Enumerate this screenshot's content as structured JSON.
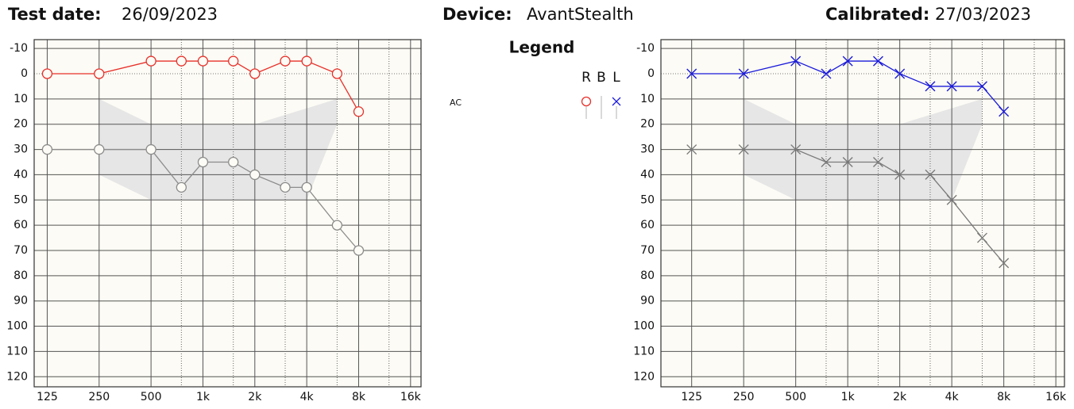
{
  "header": {
    "test_date_label": "Test date:",
    "test_date": "26/09/2023",
    "device_label": "Device:",
    "device": "AvantStealth",
    "calibrated_label": "Calibrated:",
    "calibrated": "27/03/2023"
  },
  "legend": {
    "title": "Legend",
    "columns": [
      "R",
      "B",
      "L"
    ],
    "rows": [
      "AC"
    ]
  },
  "chart_data": [
    {
      "type": "line",
      "log_x": true,
      "zero_line": "dotted",
      "x": [
        125,
        250,
        500,
        750,
        1000,
        1500,
        2000,
        3000,
        4000,
        6000,
        8000
      ],
      "xlim": [
        105,
        18400
      ],
      "xticks": [
        125,
        250,
        500,
        {
          "value": 1000,
          "label": "1k"
        },
        {
          "value": 2000,
          "label": "2k"
        },
        {
          "value": 4000,
          "label": "4k"
        },
        {
          "value": 8000,
          "label": "8k"
        },
        {
          "value": 16000,
          "label": "16k"
        }
      ],
      "minor_xticks": [
        750,
        1500,
        3000,
        6000,
        12000
      ],
      "ylim": [
        -13.5,
        124
      ],
      "yticks": [
        -10,
        0,
        10,
        20,
        30,
        40,
        50,
        60,
        70,
        80,
        90,
        100,
        110,
        120
      ],
      "shaded_region": {
        "x": [
          250,
          500,
          2000,
          6000,
          6000,
          4000,
          2000,
          500,
          250
        ],
        "y": [
          10,
          20,
          20,
          10,
          20,
          50,
          50,
          50,
          40
        ]
      },
      "series": [
        {
          "color": "#e8302a",
          "marker": "circle",
          "values": [
            0,
            0,
            -5,
            -5,
            -5,
            -5,
            0,
            -5,
            -5,
            0,
            15
          ]
        },
        {
          "color": "#8c8c8c",
          "marker": "circle",
          "values": [
            30,
            30,
            30,
            45,
            35,
            35,
            40,
            45,
            45,
            60,
            70
          ]
        }
      ]
    },
    {
      "type": "line",
      "log_x": true,
      "zero_line": "dotted",
      "x": [
        125,
        250,
        500,
        750,
        1000,
        1500,
        2000,
        3000,
        4000,
        6000,
        8000
      ],
      "xlim": [
        83,
        17950
      ],
      "xticks": [
        125,
        250,
        500,
        {
          "value": 1000,
          "label": "1k"
        },
        {
          "value": 2000,
          "label": "2k"
        },
        {
          "value": 4000,
          "label": "4k"
        },
        {
          "value": 8000,
          "label": "8k"
        },
        {
          "value": 16000,
          "label": "16k"
        }
      ],
      "minor_xticks": [
        750,
        1500,
        3000,
        6000,
        12000
      ],
      "ylim": [
        -13.5,
        124
      ],
      "yticks": [
        -10,
        0,
        10,
        20,
        30,
        40,
        50,
        60,
        70,
        80,
        90,
        100,
        110,
        120
      ],
      "shaded_region": {
        "x": [
          250,
          500,
          2000,
          6000,
          6000,
          4000,
          2000,
          500,
          250
        ],
        "y": [
          10,
          20,
          20,
          10,
          20,
          50,
          50,
          50,
          40
        ]
      },
      "series": [
        {
          "color": "#1a1adc",
          "marker": "x",
          "values": [
            0,
            0,
            -5,
            0,
            -5,
            -5,
            0,
            5,
            5,
            5,
            15
          ]
        },
        {
          "color": "#7a7a7a",
          "marker": "x",
          "values": [
            30,
            30,
            30,
            35,
            35,
            35,
            40,
            40,
            50,
            65,
            75
          ]
        }
      ]
    }
  ]
}
